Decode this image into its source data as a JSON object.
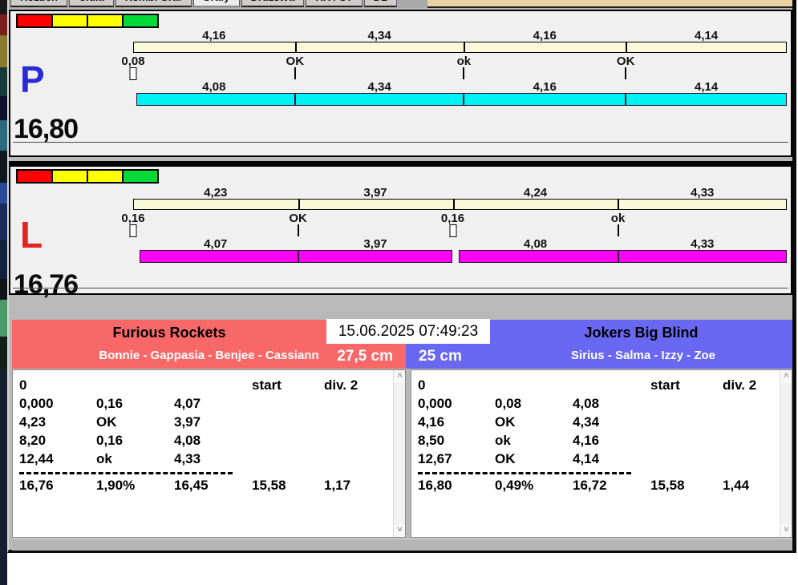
{
  "tabs": {
    "items": [
      {
        "label": "Rozběh"
      },
      {
        "label": "Čidla"
      },
      {
        "label": "Kombi Graf"
      },
      {
        "label": "Grafy"
      },
      {
        "label": "Družstva"
      },
      {
        "label": "KK / ST"
      },
      {
        "label": "DL"
      }
    ],
    "active": "Grafy"
  },
  "status_light_colors": [
    "#ff0000",
    "#ffff00",
    "#ffff00",
    "#00d936"
  ],
  "panels": [
    {
      "letter": "P",
      "letter_color": "#2b2bd5",
      "total": "16,80",
      "bar_color": "#00f2f2",
      "top_splits": [
        {
          "label": "4,16",
          "value": 4.16
        },
        {
          "label": "4,34",
          "value": 4.34
        },
        {
          "label": "4,16",
          "value": 4.16
        },
        {
          "label": "4,14",
          "value": 4.14
        }
      ],
      "markers": [
        {
          "label": "0,08",
          "type": "rect",
          "gap": 0.08
        },
        {
          "label": "OK",
          "type": "tick",
          "gap": 0
        },
        {
          "label": "ok",
          "type": "tick",
          "gap": 0
        },
        {
          "label": "OK",
          "type": "tick",
          "gap": 0
        }
      ],
      "bottom_splits": [
        {
          "label": "4,08",
          "value": 4.08
        },
        {
          "label": "4,34",
          "value": 4.34
        },
        {
          "label": "4,16",
          "value": 4.16
        },
        {
          "label": "4,14",
          "value": 4.14
        }
      ]
    },
    {
      "letter": "L",
      "letter_color": "#e32222",
      "total": "16,76",
      "bar_color": "#fa00fa",
      "top_splits": [
        {
          "label": "4,23",
          "value": 4.23
        },
        {
          "label": "3,97",
          "value": 3.97
        },
        {
          "label": "4,24",
          "value": 4.24
        },
        {
          "label": "4,33",
          "value": 4.33
        }
      ],
      "markers": [
        {
          "label": "0,16",
          "type": "rect",
          "gap": 0.16
        },
        {
          "label": "OK",
          "type": "tick",
          "gap": 0
        },
        {
          "label": "0,16",
          "type": "rect",
          "gap": 0.16
        },
        {
          "label": "ok",
          "type": "tick",
          "gap": 0
        }
      ],
      "bottom_splits": [
        {
          "label": "4,07",
          "value": 4.07
        },
        {
          "label": "3,97",
          "value": 3.97
        },
        {
          "label": "4,08",
          "value": 4.08
        },
        {
          "label": "4,33",
          "value": 4.33
        }
      ]
    }
  ],
  "timestamp": "15.06.2025 07:49:23",
  "teams": [
    {
      "name": "Furious Rockets",
      "roster": "Bonnie - Gappasia - Benjee - Cassiann",
      "distance": "27,5 cm",
      "color": "#f96868"
    },
    {
      "name": "Jokers Big Blind",
      "roster": "Sirius - Salma - Izzy - Zoe",
      "distance": "25 cm",
      "color": "#6868f2"
    }
  ],
  "tables": [
    {
      "header": {
        "col1": "0",
        "start": "start",
        "div": "div. 2"
      },
      "rows": [
        [
          "0,000",
          "0,16",
          "4,07"
        ],
        [
          "4,23",
          "OK",
          "3,97"
        ],
        [
          "8,20",
          "0,16",
          "4,08"
        ],
        [
          "12,44",
          "ok",
          "4,33"
        ]
      ],
      "totals": [
        "16,76",
        "1,90%",
        "16,45",
        "15,58",
        "1,17"
      ]
    },
    {
      "header": {
        "col1": "0",
        "start": "start",
        "div": "div. 2"
      },
      "rows": [
        [
          "0,000",
          "0,08",
          "4,08"
        ],
        [
          "4,16",
          "OK",
          "4,34"
        ],
        [
          "8,50",
          "ok",
          "4,16"
        ],
        [
          "12,67",
          "OK",
          "4,14"
        ]
      ],
      "totals": [
        "16,80",
        "0,49%",
        "16,72",
        "15,58",
        "1,44"
      ]
    }
  ],
  "icons": {
    "scroll_up": "˄",
    "scroll_down": "˅"
  }
}
